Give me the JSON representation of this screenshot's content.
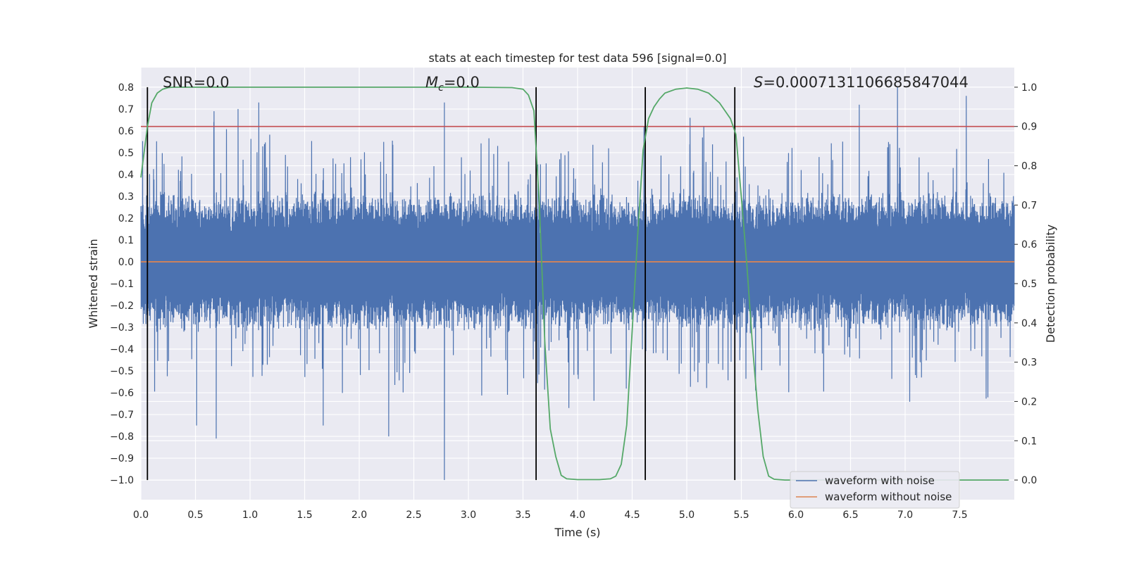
{
  "chart_data": {
    "type": "line",
    "title": "stats at each timestep for test data 596 [signal=0.0]",
    "xlabel": "Time (s)",
    "ylabel": "Whitened strain",
    "y2label": "Detection probability",
    "xlim": [
      0.0,
      8.0
    ],
    "ylim": [
      -1.09,
      0.89
    ],
    "y2lim": [
      -0.05,
      1.05
    ],
    "xticks": [
      "0.0",
      "0.5",
      "1.0",
      "1.5",
      "2.0",
      "2.5",
      "3.0",
      "3.5",
      "4.0",
      "4.5",
      "5.0",
      "5.5",
      "6.0",
      "6.5",
      "7.0",
      "7.5"
    ],
    "yticks": [
      "0.8",
      "0.7",
      "0.6",
      "0.5",
      "0.4",
      "0.3",
      "0.2",
      "0.1",
      "0.0",
      "−0.1",
      "−0.2",
      "−0.3",
      "−0.4",
      "−0.5",
      "−0.6",
      "−0.7",
      "−0.8",
      "−0.9",
      "−1.0"
    ],
    "y2ticks": [
      "1.0",
      "0.9",
      "0.8",
      "0.7",
      "0.6",
      "0.5",
      "0.4",
      "0.3",
      "0.2",
      "0.1",
      "0.0"
    ],
    "grid": true,
    "legend_position": "bottom-right",
    "annotations": {
      "snr": "SNR=0.0",
      "mc_symbol": "M",
      "mc_sub": "c",
      "mc_value": "=0.0",
      "s_symbol": "S",
      "s_value": "=0.0007131106685847044"
    },
    "colors": {
      "background": "#eaeaf2",
      "noisy": "#4c72b0",
      "clean": "#dd8452",
      "probability": "#55a868",
      "threshold": "#c44e52",
      "vlines": "#000000"
    },
    "series": [
      {
        "name": "waveform with noise",
        "x_range": [
          0.0,
          8.0
        ],
        "envelope_typical": [
          -0.33,
          0.33
        ],
        "notable_peaks": [
          {
            "x": 0.67,
            "y": 0.69
          },
          {
            "x": 0.89,
            "y": 0.7
          },
          {
            "x": 1.08,
            "y": 0.73
          },
          {
            "x": 2.78,
            "y": 0.73
          },
          {
            "x": 6.93,
            "y": 0.8
          },
          {
            "x": 7.56,
            "y": 0.76
          },
          {
            "x": 6.58,
            "y": 0.72
          },
          {
            "x": 5.03,
            "y": 0.66
          },
          {
            "x": 0.69,
            "y": -0.81
          },
          {
            "x": 1.67,
            "y": -0.75
          },
          {
            "x": 2.27,
            "y": -0.8
          },
          {
            "x": 2.78,
            "y": -1.0
          },
          {
            "x": 3.92,
            "y": -0.67
          },
          {
            "x": 0.51,
            "y": -0.75
          }
        ]
      },
      {
        "name": "waveform without noise",
        "x": [
          0.0,
          8.0
        ],
        "y": [
          0.0,
          0.0
        ]
      },
      {
        "name": "",
        "axis": "right",
        "x": [
          0.0,
          0.06,
          0.1,
          0.15,
          0.2,
          0.25,
          0.3,
          0.4,
          0.5,
          1.0,
          2.0,
          3.0,
          3.4,
          3.5,
          3.55,
          3.6,
          3.65,
          3.7,
          3.75,
          3.8,
          3.85,
          3.9,
          4.0,
          4.2,
          4.3,
          4.35,
          4.4,
          4.45,
          4.5,
          4.55,
          4.6,
          4.65,
          4.7,
          4.75,
          4.8,
          4.9,
          5.0,
          5.1,
          5.2,
          5.3,
          5.35,
          5.4,
          5.45,
          5.5,
          5.55,
          5.6,
          5.65,
          5.7,
          5.75,
          5.8,
          5.9,
          6.0,
          7.0,
          7.95
        ],
        "y": [
          0.77,
          0.9,
          0.96,
          0.985,
          0.995,
          0.999,
          1.0,
          1.0,
          1.0,
          1.0,
          1.0,
          1.0,
          0.999,
          0.995,
          0.98,
          0.94,
          0.7,
          0.35,
          0.13,
          0.06,
          0.012,
          0.003,
          0.001,
          0.001,
          0.003,
          0.01,
          0.04,
          0.14,
          0.38,
          0.62,
          0.84,
          0.92,
          0.95,
          0.97,
          0.985,
          0.995,
          0.998,
          0.995,
          0.985,
          0.96,
          0.94,
          0.92,
          0.88,
          0.72,
          0.55,
          0.35,
          0.18,
          0.06,
          0.01,
          0.002,
          0.0,
          0.0,
          0.0,
          0.0
        ]
      },
      {
        "name": "",
        "type": "hline",
        "axis": "right",
        "y": 0.9
      }
    ],
    "vlines_x": [
      0.06,
      3.62,
      4.62,
      5.44
    ]
  }
}
